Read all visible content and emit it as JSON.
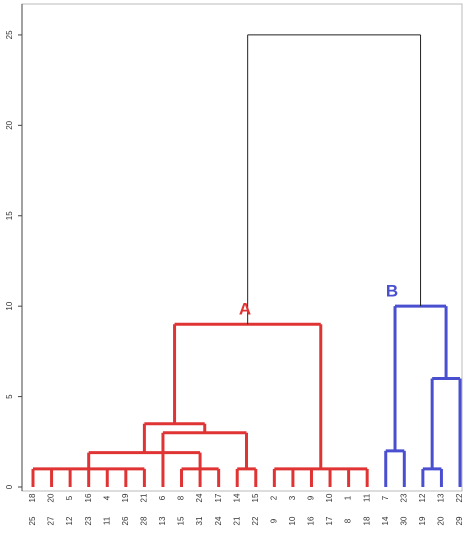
{
  "chart_data": {
    "type": "dendrogram",
    "ylim": [
      0,
      26.6
    ],
    "yticks": [
      0,
      5,
      10,
      15,
      20,
      25
    ],
    "labels_top": [
      "18",
      "20",
      "5",
      "16",
      "4",
      "19",
      "21",
      "6",
      "8",
      "24",
      "17",
      "14",
      "15",
      "2",
      "3",
      "9",
      "10",
      "1",
      "11",
      "7",
      "23",
      "12",
      "13",
      "22"
    ],
    "labels_bottom": [
      "25",
      "27",
      "12",
      "23",
      "11",
      "26",
      "28",
      "13",
      "15",
      "31",
      "24",
      "21",
      "22",
      "9",
      "10",
      "16",
      "17",
      "8",
      "18",
      "14",
      "30",
      "19",
      "20",
      "29"
    ],
    "merges": [
      {
        "leaves": [
          0,
          1,
          2,
          3,
          4,
          5,
          6
        ],
        "merges": [],
        "height": 1,
        "color": "#e03434"
      },
      {
        "leaves": [
          8,
          9,
          10
        ],
        "merges": [],
        "height": 1,
        "color": "#e03434"
      },
      {
        "leaves": [
          11,
          12
        ],
        "merges": [],
        "height": 1,
        "color": "#e03434"
      },
      {
        "leaves": [
          13,
          14,
          15,
          16,
          17,
          18
        ],
        "merges": [],
        "height": 1,
        "color": "#e03434"
      },
      {
        "leaves": [],
        "merges": [
          0,
          1
        ],
        "height": 1.9,
        "color": "#e03434"
      },
      {
        "leaves": [
          7
        ],
        "merges": [
          2
        ],
        "height": 3,
        "color": "#e03434"
      },
      {
        "leaves": [],
        "merges": [
          4,
          5
        ],
        "height": 3.5,
        "color": "#e03434"
      },
      {
        "leaves": [],
        "merges": [
          6,
          3
        ],
        "height": 9,
        "color": "#e03434"
      },
      {
        "leaves": [
          19,
          20
        ],
        "merges": [],
        "height": 2,
        "color": "#4a4fd0"
      },
      {
        "leaves": [
          21,
          22
        ],
        "merges": [],
        "height": 1,
        "color": "#4a4fd0"
      },
      {
        "leaves": [
          23
        ],
        "merges": [
          9
        ],
        "height": 6,
        "color": "#4a4fd0"
      },
      {
        "leaves": [],
        "merges": [
          8,
          10
        ],
        "height": 10,
        "color": "#4a4fd0"
      },
      {
        "leaves": [],
        "merges": [
          7,
          11
        ],
        "height": 25,
        "color": "#222222"
      }
    ],
    "annotations": [
      {
        "text": "A",
        "merge": 7,
        "color": "#e03434"
      },
      {
        "text": "B",
        "merge": 11,
        "color": "#4a4fd0"
      }
    ]
  }
}
